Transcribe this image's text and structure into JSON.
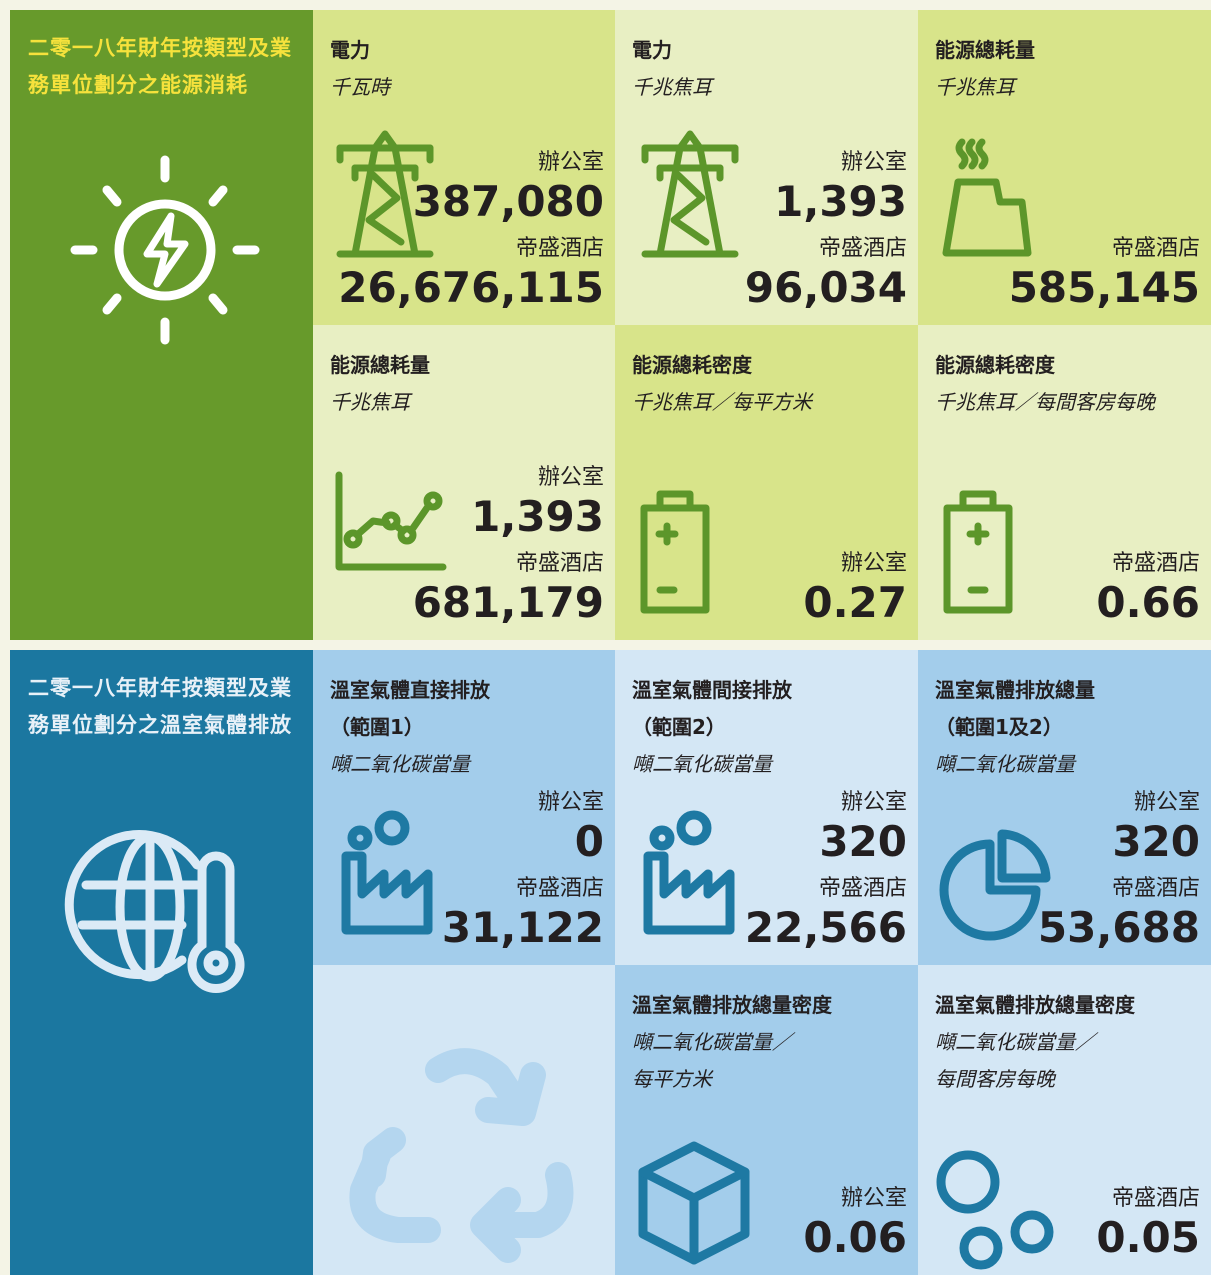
{
  "energy": {
    "title": "二零一八年財年按類型及業務單位劃分之能源消耗",
    "cells": [
      {
        "heading": [
          "電力"
        ],
        "unit": [
          "千瓦時"
        ],
        "entries": [
          {
            "label": "辦公室",
            "value": "387,080"
          },
          {
            "label": "帝盛酒店",
            "value": "26,676,115"
          }
        ]
      },
      {
        "heading": [
          "電力"
        ],
        "unit": [
          "千兆焦耳"
        ],
        "entries": [
          {
            "label": "辦公室",
            "value": "1,393"
          },
          {
            "label": "帝盛酒店",
            "value": "96,034"
          }
        ]
      },
      {
        "heading": [
          "能源總耗量"
        ],
        "unit": [
          "千兆焦耳"
        ],
        "entries": [
          {
            "label": "帝盛酒店",
            "value": "585,145"
          }
        ]
      },
      {
        "heading": [
          "能源總耗量"
        ],
        "unit": [
          "千兆焦耳"
        ],
        "entries": [
          {
            "label": "辦公室",
            "value": "1,393"
          },
          {
            "label": "帝盛酒店",
            "value": "681,179"
          }
        ]
      },
      {
        "heading": [
          "能源總耗密度"
        ],
        "unit": [
          "千兆焦耳／每平方米"
        ],
        "entries": [
          {
            "label": "辦公室",
            "value": "0.27"
          }
        ]
      },
      {
        "heading": [
          "能源總耗密度"
        ],
        "unit": [
          "千兆焦耳／每間客房每晚"
        ],
        "entries": [
          {
            "label": "帝盛酒店",
            "value": "0.66"
          }
        ]
      }
    ]
  },
  "ghg": {
    "title": "二零一八年財年按類型及業務單位劃分之溫室氣體排放",
    "cells": [
      {
        "heading": [
          "溫室氣體直接排放",
          "（範圍1）"
        ],
        "unit": [
          "噸二氧化碳當量"
        ],
        "entries": [
          {
            "label": "辦公室",
            "value": "0"
          },
          {
            "label": "帝盛酒店",
            "value": "31,122"
          }
        ]
      },
      {
        "heading": [
          "溫室氣體間接排放",
          "（範圍2）"
        ],
        "unit": [
          "噸二氧化碳當量"
        ],
        "entries": [
          {
            "label": "辦公室",
            "value": "320"
          },
          {
            "label": "帝盛酒店",
            "value": "22,566"
          }
        ]
      },
      {
        "heading": [
          "溫室氣體排放總量",
          "（範圍1及2）"
        ],
        "unit": [
          "噸二氧化碳當量"
        ],
        "entries": [
          {
            "label": "辦公室",
            "value": "320"
          },
          {
            "label": "帝盛酒店",
            "value": "53,688"
          }
        ]
      },
      {
        "heading": [
          "溫室氣體排放總量密度"
        ],
        "unit": [
          "噸二氧化碳當量／",
          "每平方米"
        ],
        "entries": [
          {
            "label": "辦公室",
            "value": "0.06"
          }
        ]
      },
      {
        "heading": [
          "溫室氣體排放總量密度"
        ],
        "unit": [
          "噸二氧化碳當量／",
          "每間客房每晚"
        ],
        "entries": [
          {
            "label": "帝盛酒店",
            "value": "0.05"
          }
        ]
      }
    ]
  }
}
